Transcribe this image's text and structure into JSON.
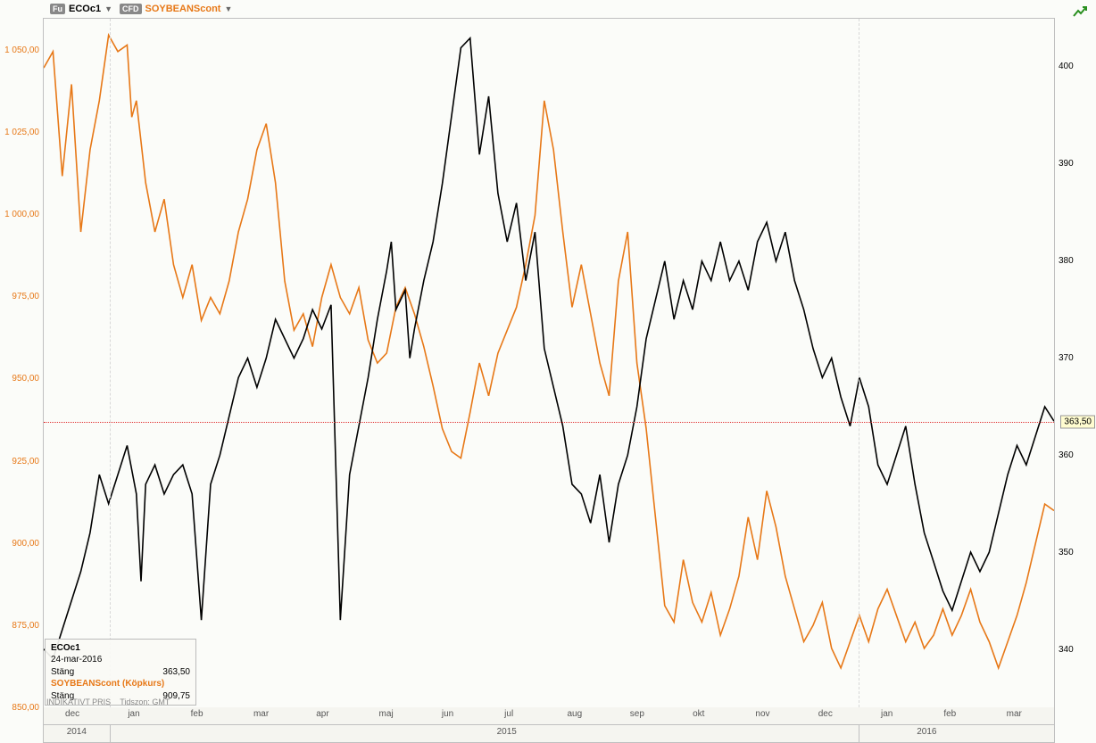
{
  "header": {
    "symbol1": {
      "badge": "Fu",
      "label": "ECOc1",
      "color": "#000000"
    },
    "symbol2": {
      "badge": "CFD",
      "label": "SOYBEANScont",
      "color": "#e77817"
    }
  },
  "chart": {
    "type": "line-dual-axis",
    "background_color": "#fbfcf9",
    "border_color": "#c0c0c0",
    "grid_color": "#d8d8d8",
    "ref_line_color": "#e03030",
    "left_axis": {
      "color": "#e77817",
      "min": 850,
      "max": 1060,
      "ticks": [
        850,
        875,
        900,
        925,
        950,
        975,
        1000,
        1025,
        1050
      ],
      "tick_labels": [
        "850,00",
        "875,00",
        "900,00",
        "925,00",
        "950,00",
        "975,00",
        "1 000,00",
        "1 025,00",
        "1 050,00"
      ]
    },
    "right_axis": {
      "color": "#000000",
      "min": 334,
      "max": 405,
      "ticks": [
        340,
        350,
        360,
        370,
        380,
        390,
        400
      ],
      "marker_value": 363.5,
      "marker_label": "363,50"
    },
    "x_axis": {
      "months": [
        "dec",
        "jan",
        "feb",
        "mar",
        "apr",
        "maj",
        "jun",
        "jul",
        "aug",
        "sep",
        "okt",
        "nov",
        "dec",
        "jan",
        "feb",
        "mar"
      ],
      "month_positions_pct": [
        3,
        9.2,
        15.4,
        21.6,
        27.8,
        34.0,
        40.2,
        46.4,
        52.6,
        58.8,
        65.0,
        71.2,
        77.4,
        83.6,
        89.8,
        96.0
      ],
      "years": [
        "2014",
        "2015",
        "2016"
      ],
      "year_positions_pct": [
        3.5,
        46,
        87.5
      ],
      "year_divider_pct": [
        6.5,
        80.5
      ]
    },
    "grid_v_positions_pct": [
      6.5,
      80.5
    ],
    "series_soybeans": {
      "color": "#e77817",
      "line_width": 1.6,
      "points": [
        [
          0,
          1045
        ],
        [
          1,
          1050
        ],
        [
          2,
          1012
        ],
        [
          3,
          1040
        ],
        [
          4,
          995
        ],
        [
          5,
          1020
        ],
        [
          6,
          1035
        ],
        [
          7,
          1055
        ],
        [
          8,
          1050
        ],
        [
          9,
          1052
        ],
        [
          9.5,
          1030
        ],
        [
          10,
          1035
        ],
        [
          11,
          1010
        ],
        [
          12,
          995
        ],
        [
          13,
          1005
        ],
        [
          14,
          985
        ],
        [
          15,
          975
        ],
        [
          16,
          985
        ],
        [
          17,
          968
        ],
        [
          18,
          975
        ],
        [
          19,
          970
        ],
        [
          20,
          980
        ],
        [
          21,
          995
        ],
        [
          22,
          1005
        ],
        [
          23,
          1020
        ],
        [
          24,
          1028
        ],
        [
          25,
          1010
        ],
        [
          26,
          980
        ],
        [
          27,
          965
        ],
        [
          28,
          970
        ],
        [
          29,
          960
        ],
        [
          30,
          975
        ],
        [
          31,
          985
        ],
        [
          32,
          975
        ],
        [
          33,
          970
        ],
        [
          34,
          978
        ],
        [
          35,
          962
        ],
        [
          36,
          955
        ],
        [
          37,
          958
        ],
        [
          38,
          972
        ],
        [
          39,
          978
        ],
        [
          40,
          970
        ],
        [
          41,
          960
        ],
        [
          42,
          948
        ],
        [
          43,
          935
        ],
        [
          44,
          928
        ],
        [
          45,
          926
        ],
        [
          46,
          940
        ],
        [
          47,
          955
        ],
        [
          48,
          945
        ],
        [
          49,
          958
        ],
        [
          50,
          965
        ],
        [
          51,
          972
        ],
        [
          52,
          985
        ],
        [
          53,
          1000
        ],
        [
          54,
          1035
        ],
        [
          55,
          1020
        ],
        [
          56,
          995
        ],
        [
          57,
          972
        ],
        [
          58,
          985
        ],
        [
          59,
          970
        ],
        [
          60,
          955
        ],
        [
          61,
          945
        ],
        [
          62,
          980
        ],
        [
          63,
          995
        ],
        [
          64,
          955
        ],
        [
          65,
          935
        ],
        [
          66,
          908
        ],
        [
          67,
          881
        ],
        [
          68,
          876
        ],
        [
          69,
          895
        ],
        [
          70,
          882
        ],
        [
          71,
          876
        ],
        [
          72,
          885
        ],
        [
          73,
          872
        ],
        [
          74,
          880
        ],
        [
          75,
          890
        ],
        [
          76,
          908
        ],
        [
          77,
          895
        ],
        [
          78,
          916
        ],
        [
          79,
          905
        ],
        [
          80,
          890
        ],
        [
          81,
          880
        ],
        [
          82,
          870
        ],
        [
          83,
          875
        ],
        [
          84,
          882
        ],
        [
          85,
          868
        ],
        [
          86,
          862
        ],
        [
          87,
          870
        ],
        [
          88,
          878
        ],
        [
          89,
          870
        ],
        [
          90,
          880
        ],
        [
          91,
          886
        ],
        [
          92,
          878
        ],
        [
          93,
          870
        ],
        [
          94,
          876
        ],
        [
          95,
          868
        ],
        [
          96,
          872
        ],
        [
          97,
          880
        ],
        [
          98,
          872
        ],
        [
          99,
          878
        ],
        [
          100,
          886
        ],
        [
          101,
          876
        ],
        [
          102,
          870
        ],
        [
          103,
          862
        ],
        [
          104,
          870
        ],
        [
          105,
          878
        ],
        [
          106,
          888
        ],
        [
          107,
          900
        ],
        [
          108,
          912
        ],
        [
          109,
          910
        ]
      ]
    },
    "series_eco": {
      "color": "#000000",
      "line_width": 1.6,
      "points": [
        [
          0,
          340
        ],
        [
          1,
          339
        ],
        [
          2,
          342
        ],
        [
          3,
          345
        ],
        [
          4,
          348
        ],
        [
          5,
          352
        ],
        [
          6,
          358
        ],
        [
          7,
          355
        ],
        [
          8,
          358
        ],
        [
          9,
          361
        ],
        [
          10,
          356
        ],
        [
          10.5,
          347
        ],
        [
          11,
          357
        ],
        [
          12,
          359
        ],
        [
          13,
          356
        ],
        [
          14,
          358
        ],
        [
          15,
          359
        ],
        [
          16,
          356
        ],
        [
          17,
          343
        ],
        [
          18,
          357
        ],
        [
          19,
          360
        ],
        [
          20,
          364
        ],
        [
          21,
          368
        ],
        [
          22,
          370
        ],
        [
          23,
          367
        ],
        [
          24,
          370
        ],
        [
          25,
          374
        ],
        [
          26,
          372
        ],
        [
          27,
          370
        ],
        [
          28,
          372
        ],
        [
          29,
          375
        ],
        [
          30,
          373
        ],
        [
          31,
          375.5
        ],
        [
          32,
          343
        ],
        [
          33,
          358
        ],
        [
          34,
          363
        ],
        [
          35,
          368
        ],
        [
          36,
          374
        ],
        [
          37,
          379
        ],
        [
          37.5,
          382
        ],
        [
          38,
          375
        ],
        [
          39,
          377
        ],
        [
          39.5,
          370
        ],
        [
          40,
          373
        ],
        [
          41,
          378
        ],
        [
          42,
          382
        ],
        [
          43,
          388
        ],
        [
          44,
          395
        ],
        [
          45,
          402
        ],
        [
          46,
          403
        ],
        [
          47,
          391
        ],
        [
          48,
          397
        ],
        [
          49,
          387
        ],
        [
          50,
          382
        ],
        [
          51,
          386
        ],
        [
          52,
          378
        ],
        [
          53,
          383
        ],
        [
          54,
          371
        ],
        [
          55,
          367
        ],
        [
          56,
          363
        ],
        [
          57,
          357
        ],
        [
          58,
          356
        ],
        [
          59,
          353
        ],
        [
          60,
          358
        ],
        [
          61,
          351
        ],
        [
          62,
          357
        ],
        [
          63,
          360
        ],
        [
          64,
          365
        ],
        [
          65,
          372
        ],
        [
          66,
          376
        ],
        [
          67,
          380
        ],
        [
          68,
          374
        ],
        [
          69,
          378
        ],
        [
          70,
          375
        ],
        [
          71,
          380
        ],
        [
          72,
          378
        ],
        [
          73,
          382
        ],
        [
          74,
          378
        ],
        [
          75,
          380
        ],
        [
          76,
          377
        ],
        [
          77,
          382
        ],
        [
          78,
          384
        ],
        [
          79,
          380
        ],
        [
          80,
          383
        ],
        [
          81,
          378
        ],
        [
          82,
          375
        ],
        [
          83,
          371
        ],
        [
          84,
          368
        ],
        [
          85,
          370
        ],
        [
          86,
          366
        ],
        [
          87,
          363
        ],
        [
          88,
          368
        ],
        [
          89,
          365
        ],
        [
          90,
          359
        ],
        [
          91,
          357
        ],
        [
          92,
          360
        ],
        [
          93,
          363
        ],
        [
          94,
          357
        ],
        [
          95,
          352
        ],
        [
          96,
          349
        ],
        [
          97,
          346
        ],
        [
          98,
          344
        ],
        [
          99,
          347
        ],
        [
          100,
          350
        ],
        [
          101,
          348
        ],
        [
          102,
          350
        ],
        [
          103,
          354
        ],
        [
          104,
          358
        ],
        [
          105,
          361
        ],
        [
          106,
          359
        ],
        [
          107,
          362
        ],
        [
          108,
          365
        ],
        [
          109,
          363.5
        ]
      ]
    }
  },
  "info_box": {
    "line1": "ECOc1",
    "line2": "24-mar-2016",
    "line3_label": "Stäng",
    "line3_value": "363,50",
    "line4": "SOYBEANScont (Köpkurs)",
    "line4_color": "#e77817",
    "line5_label": "Stäng",
    "line5_value": "909,75"
  },
  "footer": {
    "text1": "INDIKATIVT PRIS",
    "text2": "Tidszon: GMT"
  }
}
